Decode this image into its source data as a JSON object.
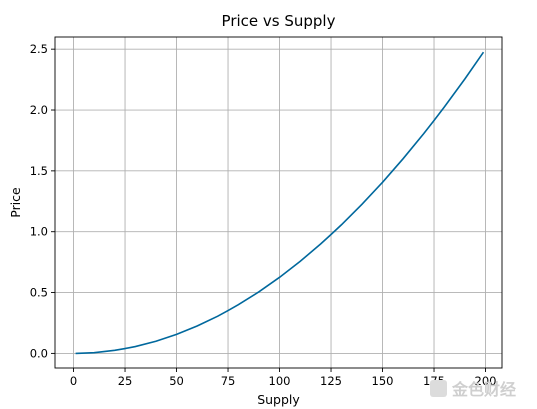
{
  "chart_data": {
    "type": "line",
    "title": "Price vs Supply",
    "xlabel": "Supply",
    "ylabel": "Price",
    "xlim": [
      -9,
      208
    ],
    "ylim": [
      -0.12,
      2.6
    ],
    "xticks": [
      0,
      25,
      50,
      75,
      100,
      125,
      150,
      175,
      200
    ],
    "yticks": [
      0.0,
      0.5,
      1.0,
      1.5,
      2.0,
      2.5
    ],
    "xtick_labels": [
      "0",
      "25",
      "50",
      "75",
      "100",
      "125",
      "150",
      "175",
      "200"
    ],
    "ytick_labels": [
      "0.0",
      "0.5",
      "1.0",
      "1.5",
      "2.0",
      "2.5"
    ],
    "grid": true,
    "series": [
      {
        "color": "#00689d",
        "x": [
          1,
          10,
          20,
          25,
          30,
          40,
          50,
          60,
          70,
          75,
          80,
          90,
          100,
          110,
          120,
          125,
          130,
          140,
          150,
          160,
          170,
          175,
          180,
          190,
          199
        ],
        "y": [
          0.0,
          0.006,
          0.025,
          0.04,
          0.056,
          0.1,
          0.156,
          0.225,
          0.306,
          0.352,
          0.4,
          0.506,
          0.625,
          0.756,
          0.9,
          0.977,
          1.056,
          1.225,
          1.406,
          1.6,
          1.806,
          1.914,
          2.025,
          2.256,
          2.475
        ]
      }
    ]
  },
  "watermark": {
    "text": "金色财经",
    "color": "#cfcfcf"
  }
}
